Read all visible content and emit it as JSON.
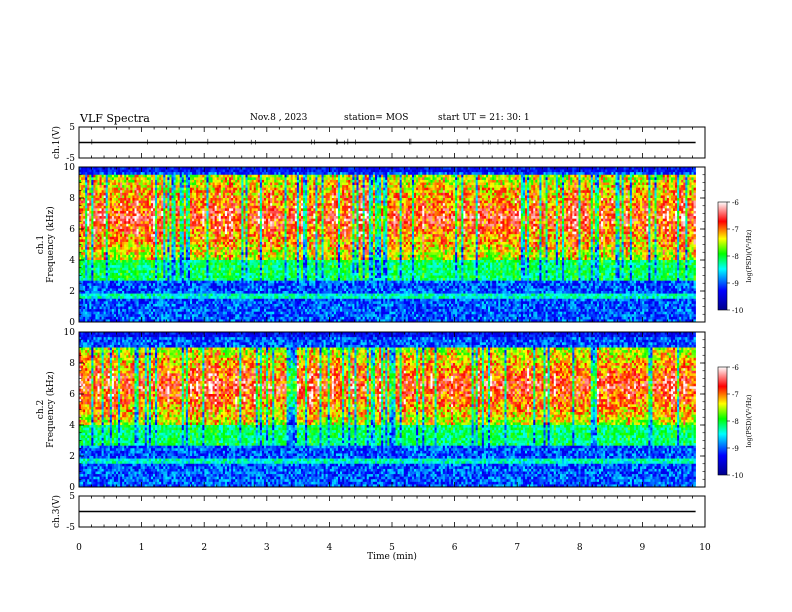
{
  "header": {
    "title": "VLF Spectra",
    "date": "Nov.8 , 2023",
    "station": "station= MOS",
    "start": "start UT = 21: 30: 1"
  },
  "chart_data": [
    {
      "type": "line",
      "panel": "ch1_waveform",
      "ylabel": "ch.1(V)",
      "ylim": [
        -5,
        5
      ],
      "yticks": [
        5,
        -5
      ],
      "x": [
        0,
        9.85
      ],
      "values": [
        0,
        0
      ],
      "grid": false
    },
    {
      "type": "heatmap",
      "panel": "ch1_spectrogram",
      "ylabel": "ch.1\nFrequency (kHz)",
      "ylim": [
        0,
        10
      ],
      "yticks": [
        0,
        2,
        4,
        6,
        8,
        10
      ],
      "xlim": [
        0,
        10
      ],
      "data_end_min": 9.85,
      "description_bands": {
        "low_band_khz": [
          0,
          2.6
        ],
        "mid_noise_band_khz": [
          2.6,
          4
        ],
        "high_activity_band_khz": [
          4,
          9.5
        ]
      },
      "colorbar": {
        "label": "log(PSD)(V²/Hz)",
        "range": [
          -10,
          -6
        ],
        "ticks": [
          -6,
          -7,
          -8,
          -9,
          -10
        ]
      }
    },
    {
      "type": "heatmap",
      "panel": "ch2_spectrogram",
      "ylabel": "ch.2\nFrequency (kHz)",
      "ylim": [
        0,
        10
      ],
      "yticks": [
        0,
        2,
        4,
        6,
        8,
        10
      ],
      "xlim": [
        0,
        10
      ],
      "data_end_min": 9.85,
      "description_bands": {
        "low_band_khz": [
          0,
          2.6
        ],
        "mid_noise_band_khz": [
          2.6,
          4
        ],
        "high_activity_band_khz": [
          4,
          9
        ]
      },
      "colorbar": {
        "label": "log(PSD)(V²/Hz)",
        "range": [
          -10,
          -6
        ],
        "ticks": [
          -6,
          -7,
          -8,
          -9,
          -10
        ]
      }
    },
    {
      "type": "line",
      "panel": "ch3_waveform",
      "ylabel": "ch.3(V)",
      "ylim": [
        -5,
        5
      ],
      "yticks": [
        5,
        -5
      ],
      "x": [
        0,
        9.85
      ],
      "values": [
        0,
        0
      ],
      "grid": false
    }
  ],
  "xaxis": {
    "label": "Time (min)",
    "range": [
      0,
      10
    ],
    "ticks": [
      0,
      1,
      2,
      3,
      4,
      5,
      6,
      7,
      8,
      9,
      10
    ]
  },
  "colors": {
    "colormap": [
      "#00008b",
      "#0000ff",
      "#00ffff",
      "#00ff00",
      "#ffff00",
      "#ff0000",
      "#ffffff"
    ]
  }
}
